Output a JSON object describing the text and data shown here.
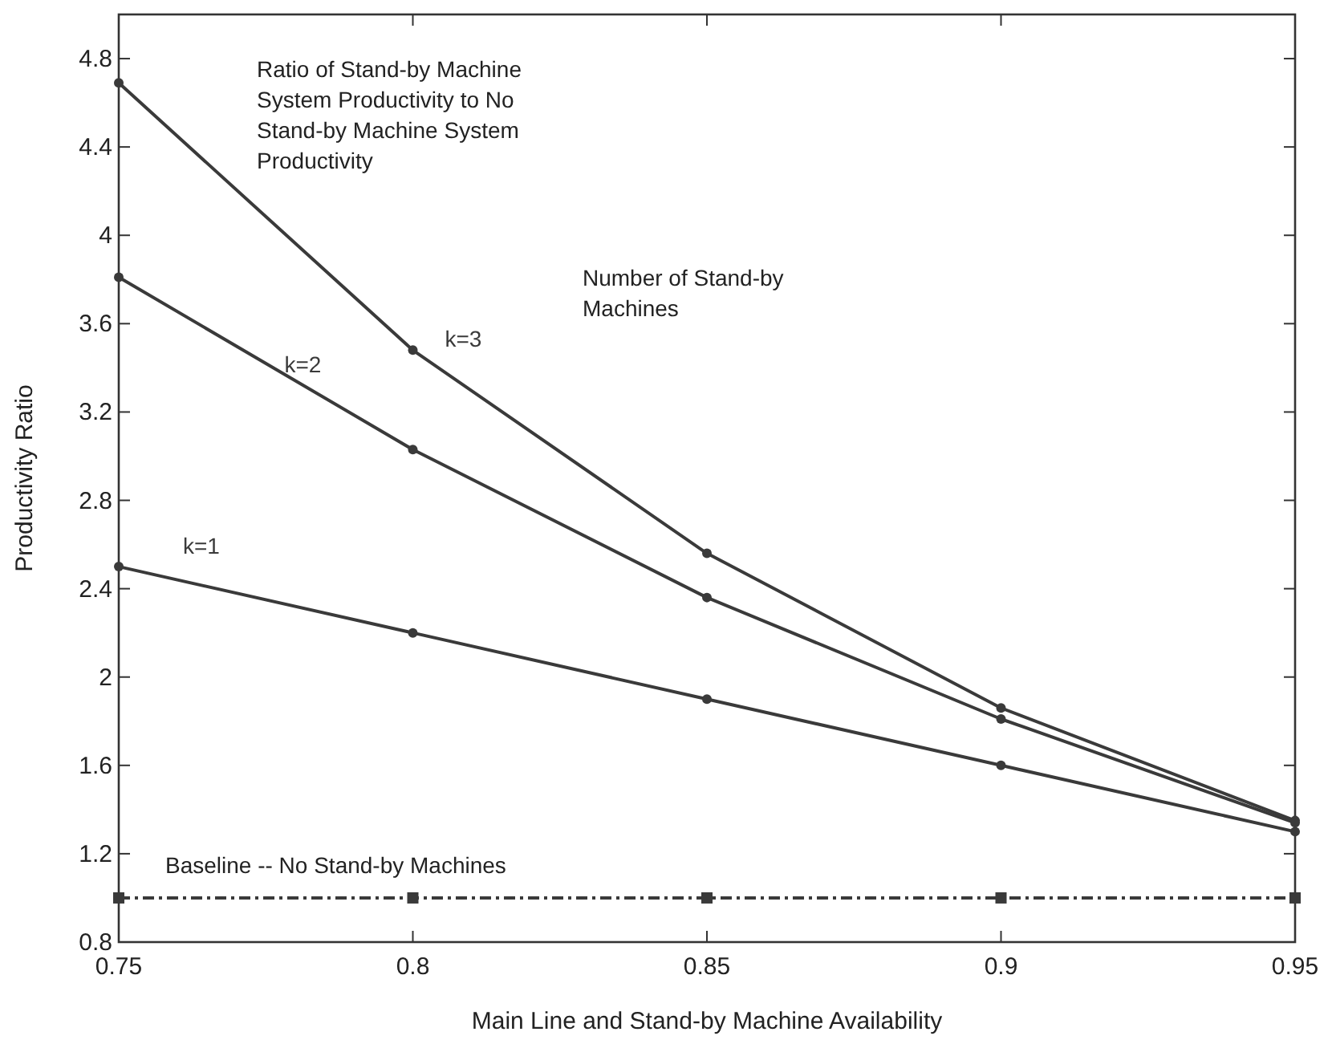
{
  "chart_data": {
    "type": "line",
    "xlabel": "Main Line and Stand-by Machine Availability",
    "ylabel": "Productivity Ratio",
    "x": [
      0.75,
      0.8,
      0.85,
      0.9,
      0.95
    ],
    "series": [
      {
        "name": "k=3",
        "color": "#3a3a3a",
        "values": [
          4.69,
          3.48,
          2.56,
          1.86,
          1.35
        ],
        "marker": "circle",
        "line_style": "solid"
      },
      {
        "name": "k=2",
        "color": "#3a3a3a",
        "values": [
          3.81,
          3.03,
          2.36,
          1.81,
          1.34
        ],
        "marker": "circle",
        "line_style": "solid"
      },
      {
        "name": "k=1",
        "color": "#3a3a3a",
        "values": [
          2.5,
          2.2,
          1.9,
          1.6,
          1.3
        ],
        "marker": "circle",
        "line_style": "solid"
      },
      {
        "color": "#3a3a3a",
        "values": [
          1,
          1,
          1,
          1,
          1
        ],
        "marker": "square",
        "line_style": "dashdot"
      }
    ],
    "annotations": [
      "Ratio of Stand-by Machine System Productivity to No Stand-by Machine System Productivity",
      "Number of Stand-by Machines",
      "Baseline -- No Stand-by Machines"
    ],
    "xlim": [
      0.75,
      0.95
    ],
    "xticks": [
      0.75,
      0.8,
      0.85,
      0.9,
      0.95
    ],
    "ylim": [
      0.8,
      5
    ],
    "yticks": [
      0.8,
      1.2,
      1.6,
      2,
      2.4,
      2.8,
      3.2,
      3.6,
      4,
      4.4,
      4.8
    ],
    "grid": false,
    "legend": false
  }
}
